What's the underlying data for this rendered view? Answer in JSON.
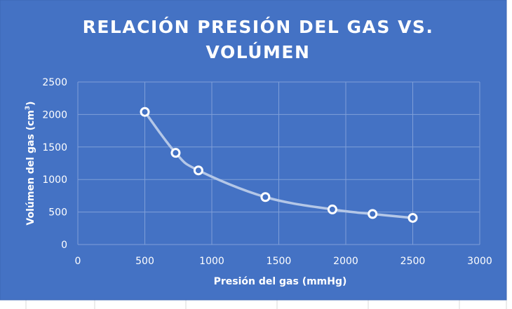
{
  "colors": {
    "background": "#4472C4",
    "sheet": "#ffffff",
    "sheet_grid": "#d9d9d9",
    "grid": "#7f9fd8",
    "line": "#b4c7e7",
    "marker_fill": "#4472C4",
    "marker_stroke": "#ffffff",
    "text": "#ffffff"
  },
  "chart_data": {
    "type": "scatter",
    "title_lines": [
      "RELACIÓN PRESIÓN DEL GAS VS.",
      "VOLÚMEN"
    ],
    "xlabel": "Presión del gas (mmHg)",
    "ylabel": "Volúmen del gas (cm",
    "ylabel_sup": "3",
    "ylabel_end": ")",
    "xlim": [
      0,
      3000
    ],
    "ylim": [
      0,
      2500
    ],
    "x_ticks": [
      0,
      500,
      1000,
      1500,
      2000,
      2500,
      3000
    ],
    "y_ticks": [
      0,
      500,
      1000,
      1500,
      2000,
      2500
    ],
    "grid": true,
    "legend": "none",
    "series": [
      {
        "smooth": true,
        "markers": "circle-open",
        "x": [
          500,
          730,
          900,
          1400,
          1900,
          2200,
          2500
        ],
        "y": [
          2040,
          1410,
          1140,
          730,
          540,
          470,
          410
        ]
      }
    ]
  }
}
